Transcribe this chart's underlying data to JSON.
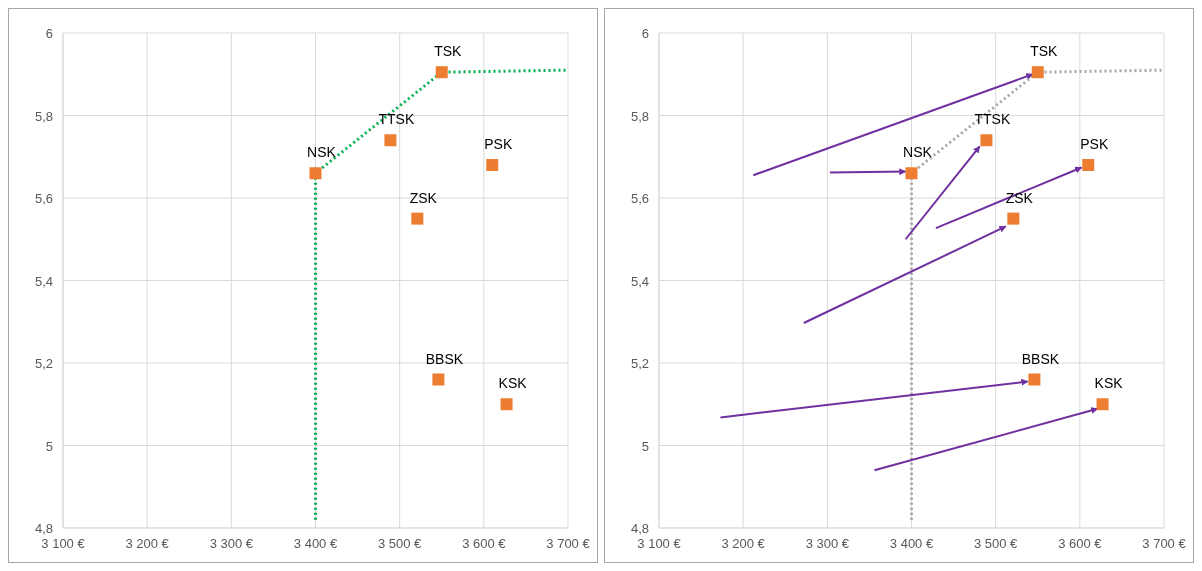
{
  "chart_data": [
    {
      "type": "scatter",
      "xlim": [
        3100,
        3700
      ],
      "ylim": [
        4.8,
        6
      ],
      "xticks": [
        {
          "value": 3100,
          "label": "3 100 €"
        },
        {
          "value": 3200,
          "label": "3 200 €"
        },
        {
          "value": 3300,
          "label": "3 300 €"
        },
        {
          "value": 3400,
          "label": "3 400 €"
        },
        {
          "value": 3500,
          "label": "3 500 €"
        },
        {
          "value": 3600,
          "label": "3 600 €"
        },
        {
          "value": 3700,
          "label": "3 700 €"
        }
      ],
      "yticks": [
        {
          "value": 4.8,
          "label": "4,8"
        },
        {
          "value": 5,
          "label": "5"
        },
        {
          "value": 5.2,
          "label": "5,2"
        },
        {
          "value": 5.4,
          "label": "5,4"
        },
        {
          "value": 5.6,
          "label": "5,6"
        },
        {
          "value": 5.8,
          "label": "5,8"
        },
        {
          "value": 6,
          "label": "6"
        }
      ],
      "grid": true,
      "series": [
        {
          "type": "line",
          "color": "#00b050",
          "line_style": "dotted",
          "marker": "none",
          "x": [
            3400,
            3400,
            3550,
            3700
          ],
          "values": [
            4.82,
            5.66,
            5.905,
            5.91
          ]
        },
        {
          "color": "#ed7d31",
          "marker": "square",
          "x": [
            3550,
            3400,
            3489,
            3610,
            3521,
            3546,
            3627
          ],
          "values": [
            5.905,
            5.66,
            5.74,
            5.68,
            5.55,
            5.16,
            5.1
          ]
        }
      ],
      "annotations": [
        {
          "text": "TSK",
          "x": 3550,
          "y": 5.905
        },
        {
          "text": "NSK",
          "x": 3400,
          "y": 5.66
        },
        {
          "text": "TTSK",
          "x": 3489,
          "y": 5.74
        },
        {
          "text": "PSK",
          "x": 3610,
          "y": 5.68
        },
        {
          "text": "ZSK",
          "x": 3521,
          "y": 5.55
        },
        {
          "text": "BBSK",
          "x": 3546,
          "y": 5.16
        },
        {
          "text": "KSK",
          "x": 3627,
          "y": 5.1
        }
      ]
    },
    {
      "type": "scatter",
      "xlim": [
        3100,
        3700
      ],
      "ylim": [
        4.8,
        6
      ],
      "xticks": [
        {
          "value": 3100,
          "label": "3 100 €"
        },
        {
          "value": 3200,
          "label": "3 200 €"
        },
        {
          "value": 3300,
          "label": "3 300 €"
        },
        {
          "value": 3400,
          "label": "3 400 €"
        },
        {
          "value": 3500,
          "label": "3 500 €"
        },
        {
          "value": 3600,
          "label": "3 600 €"
        },
        {
          "value": 3700,
          "label": "3 700 €"
        }
      ],
      "yticks": [
        {
          "value": 4.8,
          "label": "4,8"
        },
        {
          "value": 5,
          "label": "5"
        },
        {
          "value": 5.2,
          "label": "5,2"
        },
        {
          "value": 5.4,
          "label": "5,4"
        },
        {
          "value": 5.6,
          "label": "5,6"
        },
        {
          "value": 5.8,
          "label": "5,8"
        },
        {
          "value": 6,
          "label": "6"
        }
      ],
      "grid": true,
      "series": [
        {
          "type": "line",
          "color": "#a6a6a6",
          "line_style": "dotted",
          "marker": "none",
          "x": [
            3400,
            3400,
            3550,
            3700
          ],
          "values": [
            4.82,
            5.66,
            5.905,
            5.91
          ]
        },
        {
          "type": "line",
          "color": "#7030a0",
          "line_style": "solid",
          "marker": "none",
          "x": [
            3212,
            3544
          ],
          "values": [
            5.655,
            5.9
          ]
        },
        {
          "type": "line",
          "color": "#7030a0",
          "line_style": "solid",
          "marker": "none",
          "x": [
            3303,
            3393
          ],
          "values": [
            5.662,
            5.664
          ]
        },
        {
          "type": "line",
          "color": "#7030a0",
          "line_style": "solid",
          "marker": "none",
          "x": [
            3393,
            3481
          ],
          "values": [
            5.5,
            5.725
          ]
        },
        {
          "type": "line",
          "color": "#7030a0",
          "line_style": "solid",
          "marker": "none",
          "x": [
            3429,
            3602
          ],
          "values": [
            5.527,
            5.674
          ]
        },
        {
          "type": "line",
          "color": "#7030a0",
          "line_style": "solid",
          "marker": "none",
          "x": [
            3272,
            3512
          ],
          "values": [
            5.297,
            5.531
          ]
        },
        {
          "type": "line",
          "color": "#7030a0",
          "line_style": "solid",
          "marker": "none",
          "x": [
            3173,
            3538
          ],
          "values": [
            5.068,
            5.155
          ]
        },
        {
          "type": "line",
          "color": "#7030a0",
          "line_style": "solid",
          "marker": "none",
          "x": [
            3356,
            3621
          ],
          "values": [
            4.94,
            5.089
          ]
        },
        {
          "color": "#ed7d31",
          "marker": "square",
          "x": [
            3550,
            3400,
            3489,
            3610,
            3521,
            3546,
            3627
          ],
          "values": [
            5.905,
            5.66,
            5.74,
            5.68,
            5.55,
            5.16,
            5.1
          ]
        }
      ],
      "annotations": [
        {
          "text": "TSK",
          "x": 3550,
          "y": 5.905
        },
        {
          "text": "NSK",
          "x": 3400,
          "y": 5.66
        },
        {
          "text": "TTSK",
          "x": 3489,
          "y": 5.74
        },
        {
          "text": "PSK",
          "x": 3610,
          "y": 5.68
        },
        {
          "text": "ZSK",
          "x": 3521,
          "y": 5.55
        },
        {
          "text": "BBSK",
          "x": 3546,
          "y": 5.16
        },
        {
          "text": "KSK",
          "x": 3627,
          "y": 5.1
        }
      ]
    }
  ]
}
